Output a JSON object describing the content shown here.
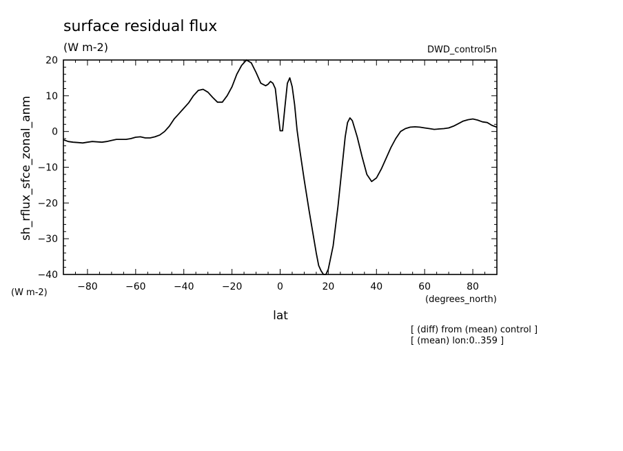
{
  "chart_data": {
    "type": "line",
    "title": "surface residual flux",
    "units": "(W m-2)",
    "dataset": "DWD_control5n",
    "xlabel": "lat",
    "xunits": "(degrees_north)",
    "ylabel": "sh_rflux_sfce_zonal_anm",
    "yunits": "(W m-2)",
    "notes": [
      "[ (diff) from (mean) control ]",
      "[ (mean) lon:0..359 ]"
    ],
    "xlim": [
      -90,
      90
    ],
    "ylim": [
      -40,
      20
    ],
    "xticks": [
      -80,
      -60,
      -40,
      -20,
      0,
      20,
      40,
      60,
      80
    ],
    "yticks": [
      -40,
      -30,
      -20,
      -10,
      0,
      10,
      20
    ],
    "grid": false,
    "line_color": "#000000",
    "series": [
      {
        "x": [
          -90,
          -88,
          -86,
          -84,
          -82,
          -80,
          -78,
          -76,
          -74,
          -72,
          -70,
          -68,
          -66,
          -64,
          -62,
          -60,
          -58,
          -56,
          -54,
          -52,
          -50,
          -48,
          -46,
          -44,
          -42,
          -40,
          -38,
          -36,
          -34,
          -32,
          -30,
          -28,
          -26,
          -24,
          -22,
          -20,
          -18,
          -16,
          -14,
          -12,
          -10,
          -8,
          -6,
          -5,
          -4,
          -3,
          -2,
          -1,
          0,
          1,
          2,
          3,
          4,
          5,
          6,
          7,
          8,
          10,
          12,
          14,
          15,
          16,
          17,
          18,
          19,
          20,
          22,
          24,
          26,
          27,
          28,
          29,
          30,
          32,
          34,
          36,
          38,
          40,
          42,
          44,
          46,
          48,
          50,
          52,
          54,
          56,
          58,
          60,
          62,
          64,
          66,
          68,
          70,
          72,
          74,
          76,
          78,
          80,
          82,
          84,
          86,
          88,
          90
        ],
        "y": [
          -2.3,
          -2.8,
          -3.0,
          -3.1,
          -3.2,
          -3.0,
          -2.8,
          -2.9,
          -3.0,
          -2.8,
          -2.5,
          -2.2,
          -2.2,
          -2.2,
          -2.0,
          -1.6,
          -1.5,
          -1.8,
          -1.8,
          -1.5,
          -1.0,
          0.0,
          1.5,
          3.5,
          5.0,
          6.5,
          8.0,
          10.0,
          11.5,
          11.8,
          11.0,
          9.5,
          8.2,
          8.2,
          10.0,
          12.5,
          16.0,
          18.5,
          20.0,
          19.2,
          16.5,
          13.5,
          12.8,
          13.2,
          14.0,
          13.5,
          12.0,
          6.0,
          0.2,
          0.2,
          7.0,
          13.5,
          15.0,
          12.5,
          7.5,
          0.5,
          -4.5,
          -13.5,
          -22.0,
          -30.0,
          -34.0,
          -37.5,
          -39.0,
          -40.0,
          -40.0,
          -38.5,
          -32.0,
          -21.0,
          -8.0,
          -1.5,
          2.5,
          3.8,
          3.0,
          -1.5,
          -7.0,
          -12.0,
          -14.0,
          -13.0,
          -10.5,
          -7.5,
          -4.5,
          -2.0,
          0.0,
          0.8,
          1.2,
          1.3,
          1.2,
          1.0,
          0.8,
          0.6,
          0.7,
          0.8,
          1.0,
          1.5,
          2.2,
          2.9,
          3.3,
          3.5,
          3.2,
          2.7,
          2.5,
          1.7,
          1.2
        ]
      }
    ]
  }
}
